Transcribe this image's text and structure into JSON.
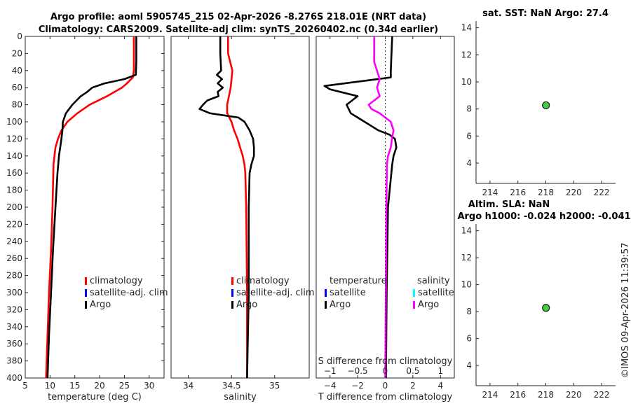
{
  "titles": {
    "line1": "Argo profile: aoml 5905745_215 02-Apr-2026 -8.276S 218.01E (NRT data)",
    "line2": "Climatology: CARS2009. Satellite-adj clim: synTS_20260402.nc (0.34d earlier)",
    "sst_title": "sat. SST: NaN Argo: 27.4",
    "sla_title1": "Altim. SLA: NaN",
    "sla_title2": "Argo h1000: -0.024 h2000: -0.041",
    "stamp": "©IMOS 09-Apr-2026 11:39:57"
  },
  "colors": {
    "climatology": "#ff0000",
    "satellite": "#0000ff",
    "argo": "#000000",
    "salinity_sat": "#00ffff",
    "salinity_argo": "#ff00ff",
    "marker": "#44cc44"
  },
  "chart_data": [
    {
      "type": "line",
      "name": "temperature",
      "xlabel": "temperature (deg C)",
      "xlim": [
        5,
        33
      ],
      "ylim": [
        0,
        400
      ],
      "xticks": [
        5,
        10,
        15,
        20,
        25,
        30
      ],
      "yticks": [
        0,
        20,
        40,
        60,
        80,
        100,
        120,
        140,
        160,
        180,
        200,
        220,
        240,
        260,
        280,
        300,
        320,
        340,
        360,
        380,
        400
      ],
      "legend": [
        "climatology",
        "satellite-adj. clim",
        "Argo"
      ],
      "series": [
        {
          "name": "climatology",
          "color": "#ff0000",
          "depth": [
            0,
            40,
            48,
            55,
            60,
            70,
            80,
            90,
            100,
            110,
            120,
            130,
            140,
            150,
            200,
            250,
            300,
            350,
            400
          ],
          "values": [
            26.9,
            26.9,
            26.7,
            25.5,
            24.5,
            21.5,
            18.0,
            15.5,
            13.5,
            12.3,
            11.6,
            11.1,
            10.9,
            10.7,
            10.5,
            10.2,
            9.8,
            9.5,
            9.2
          ]
        },
        {
          "name": "Argo",
          "color": "#000000",
          "depth": [
            0,
            30,
            45,
            50,
            55,
            60,
            65,
            70,
            80,
            90,
            100,
            110,
            120,
            140,
            160,
            200,
            250,
            300,
            350,
            400
          ],
          "values": [
            27.4,
            27.4,
            27.3,
            25.0,
            21.0,
            18.5,
            17.5,
            16.2,
            14.5,
            13.2,
            12.6,
            12.5,
            12.3,
            11.8,
            11.5,
            11.1,
            10.6,
            10.2,
            9.8,
            9.5
          ]
        }
      ]
    },
    {
      "type": "line",
      "name": "salinity",
      "xlabel": "salinity",
      "xlim": [
        33.8,
        35.4
      ],
      "ylim": [
        0,
        400
      ],
      "xticks": [
        34,
        34.5,
        35
      ],
      "legend": [
        "climatology",
        "satellite-adj. clim",
        "Argo"
      ],
      "series": [
        {
          "name": "climatology",
          "color": "#ff0000",
          "depth": [
            0,
            20,
            40,
            60,
            80,
            90,
            100,
            110,
            120,
            130,
            140,
            150,
            160,
            200,
            300,
            400
          ],
          "values": [
            34.46,
            34.46,
            34.51,
            34.49,
            34.45,
            34.45,
            34.5,
            34.53,
            34.57,
            34.6,
            34.63,
            34.65,
            34.66,
            34.67,
            34.68,
            34.68
          ]
        },
        {
          "name": "Argo",
          "color": "#000000",
          "depth": [
            0,
            20,
            40,
            45,
            50,
            55,
            60,
            65,
            70,
            75,
            80,
            85,
            90,
            95,
            100,
            110,
            120,
            130,
            140,
            150,
            160,
            200,
            300,
            400
          ],
          "values": [
            34.37,
            34.37,
            34.38,
            34.33,
            34.39,
            34.34,
            34.4,
            34.34,
            34.35,
            34.22,
            34.17,
            34.13,
            34.25,
            34.58,
            34.65,
            34.71,
            34.75,
            34.76,
            34.76,
            34.73,
            34.71,
            34.7,
            34.7,
            34.68
          ]
        }
      ]
    },
    {
      "type": "line",
      "name": "difference",
      "xlabel": "T difference from climatology",
      "xlabel_top": "S difference from climatology",
      "xlim": [
        -5,
        5
      ],
      "xlim_s": [
        -1.25,
        1.25
      ],
      "ylim": [
        0,
        400
      ],
      "xticks": [
        -4,
        -2,
        0,
        2,
        4
      ],
      "xticks_s": [
        -1,
        -0.5,
        0,
        0.5,
        1
      ],
      "legend_left": [
        "temperature",
        "satellite",
        "Argo"
      ],
      "legend_right": [
        "salinity",
        "satellite",
        "Argo"
      ],
      "series": [
        {
          "name": "T difference",
          "color": "#000000",
          "depth": [
            0,
            40,
            48,
            52,
            58,
            62,
            70,
            80,
            90,
            100,
            110,
            115,
            120,
            130,
            140,
            150,
            200,
            300,
            400
          ],
          "values": [
            0.5,
            0.4,
            0.4,
            -1.5,
            -4.4,
            -4.0,
            -2.0,
            -2.8,
            -2.5,
            -1.5,
            -0.5,
            0.3,
            0.7,
            0.8,
            0.6,
            0.5,
            0.2,
            0.1,
            0.05
          ]
        },
        {
          "name": "S difference",
          "color": "#ff00ff",
          "depth": [
            0,
            30,
            40,
            50,
            60,
            70,
            80,
            85,
            90,
            100,
            110,
            120,
            130,
            140,
            150,
            200,
            300,
            400
          ],
          "values": [
            -0.2,
            -0.2,
            -0.15,
            -0.1,
            -0.15,
            -0.1,
            -0.3,
            -0.25,
            -0.1,
            0.1,
            0.15,
            0.12,
            0.1,
            0.05,
            0.03,
            0.02,
            0.01,
            0.0
          ]
        }
      ]
    },
    {
      "type": "scatter",
      "name": "sst",
      "title": "sat. SST: NaN Argo: 27.4",
      "xlim": [
        213,
        223
      ],
      "ylim": [
        2.5,
        14.5
      ],
      "xticks": [
        214,
        216,
        218,
        220,
        222
      ],
      "yticks": [
        4,
        6,
        8,
        10,
        12,
        14
      ],
      "points": [
        {
          "x": 218.01,
          "y": 8.276
        }
      ]
    },
    {
      "type": "scatter",
      "name": "sla",
      "title": "Altim. SLA: NaN",
      "xlim": [
        213,
        223
      ],
      "ylim": [
        2.5,
        14.5
      ],
      "xticks": [
        214,
        216,
        218,
        220,
        222
      ],
      "yticks": [
        4,
        6,
        8,
        10,
        12,
        14
      ],
      "points": [
        {
          "x": 218.01,
          "y": 8.276
        }
      ]
    }
  ]
}
